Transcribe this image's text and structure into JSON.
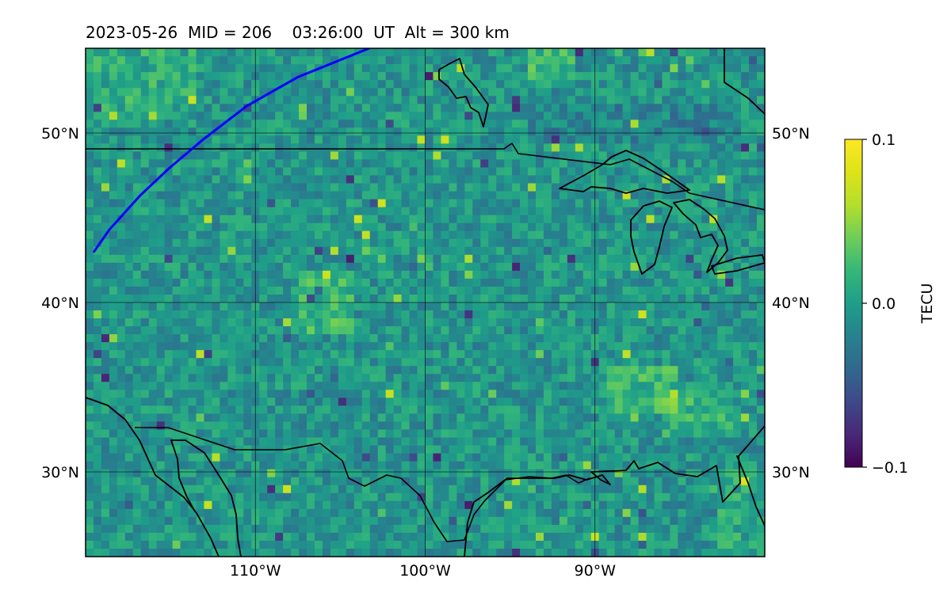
{
  "figure": {
    "title": "2023-05-26  MID = 206    03:26:00  UT  Alt = 300 km"
  },
  "map": {
    "projection": "PlateCarree",
    "extent": {
      "lon": [
        -120,
        -80
      ],
      "lat": [
        25,
        55
      ]
    },
    "lon_ticks": [
      {
        "value": -110,
        "label": "110°W"
      },
      {
        "value": -100,
        "label": "100°W"
      },
      {
        "value": -90,
        "label": "90°W"
      }
    ],
    "lat_ticks": [
      {
        "value": 30,
        "label": "30°N"
      },
      {
        "value": 40,
        "label": "40°N"
      },
      {
        "value": 50,
        "label": "50°N"
      }
    ],
    "grid": true
  },
  "chart_data": {
    "type": "heatmap",
    "colormap": "viridis",
    "x_range": [
      -120,
      -80
    ],
    "y_range": [
      25,
      55
    ],
    "vmin": -0.1,
    "vmax": 0.1,
    "colorbar": {
      "label": "TECU",
      "tick_values": [
        0.1,
        0.0,
        -0.1
      ],
      "tick_labels": [
        "0.1",
        "0.0",
        "−0.1"
      ]
    },
    "blue_track": {
      "color": "#0000ff",
      "points": [
        [
          -119.5,
          43.0
        ],
        [
          -118.6,
          44.3
        ],
        [
          -116.8,
          46.3
        ],
        [
          -115.1,
          47.9
        ],
        [
          -113.1,
          49.6
        ],
        [
          -110.5,
          51.6
        ],
        [
          -107.5,
          53.3
        ],
        [
          -103.3,
          55.0
        ]
      ]
    }
  }
}
